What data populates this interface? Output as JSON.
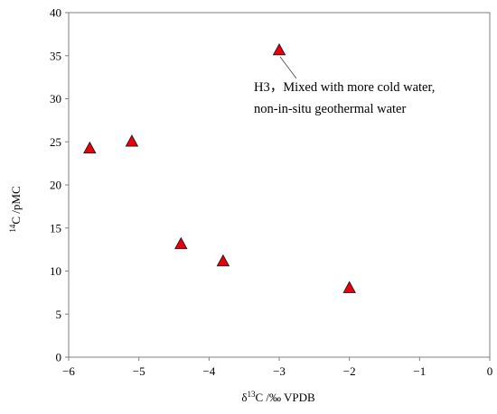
{
  "chart_data": {
    "type": "scatter",
    "xlabel": {
      "delta": "δ",
      "sup": "13",
      "rest": "C /‰  VPDB"
    },
    "ylabel": {
      "sup": "14",
      "rest": "C /pMC"
    },
    "xlim": [
      -6,
      0
    ],
    "ylim": [
      0,
      40
    ],
    "xticks": [
      -6,
      -5,
      -4,
      -3,
      -2,
      -1,
      0
    ],
    "yticks": [
      0,
      5,
      10,
      15,
      20,
      25,
      30,
      35,
      40
    ],
    "xtick_labels": [
      "−6",
      "−5",
      "−4",
      "−3",
      "−2",
      "−1",
      "0"
    ],
    "ytick_labels": [
      "0",
      "5",
      "10",
      "15",
      "20",
      "25",
      "30",
      "35",
      "40"
    ],
    "marker": "triangle",
    "marker_color": "#e8000b",
    "grid": false,
    "legend": "none",
    "points": [
      {
        "x": -5.7,
        "y": 24.2
      },
      {
        "x": -5.1,
        "y": 25.0
      },
      {
        "x": -4.4,
        "y": 13.1
      },
      {
        "x": -3.8,
        "y": 11.1
      },
      {
        "x": -3.0,
        "y": 35.6
      },
      {
        "x": -2.0,
        "y": 8.0
      }
    ],
    "annotations": [
      {
        "target_x": -3.0,
        "target_y": 35.6,
        "lines": [
          "H3，Mixed with more cold water,",
          "non-in-situ geothermal water"
        ]
      }
    ]
  }
}
